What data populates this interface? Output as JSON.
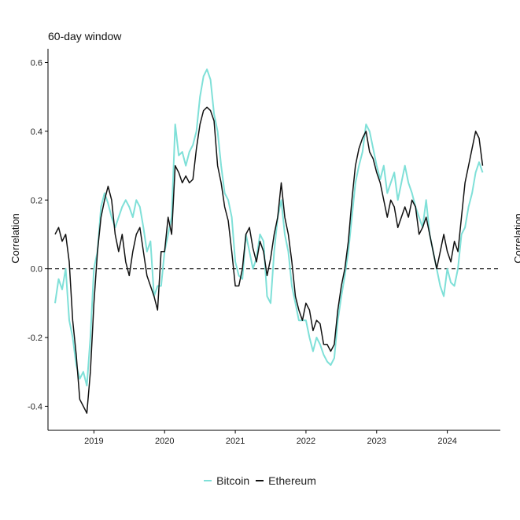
{
  "chart_data": {
    "type": "line",
    "title": "60-day window",
    "ylabel": "Correlation",
    "xlabel": "",
    "ylim": [
      -0.47,
      0.64
    ],
    "xlim": [
      2018.35,
      2024.75
    ],
    "y_ticks": [
      -0.4,
      -0.2,
      0.0,
      0.2,
      0.4,
      0.6
    ],
    "y_tick_labels": [
      "-0.4",
      "-0.2",
      "0.0",
      "0.2",
      "0.4",
      "0.6"
    ],
    "x_ticks": [
      2019,
      2020,
      2021,
      2022,
      2023,
      2024
    ],
    "x_tick_labels": [
      "2019",
      "2020",
      "2021",
      "2022",
      "2023",
      "2024"
    ],
    "reference_line": {
      "y": 0.0,
      "style": "dashed"
    },
    "grid": false,
    "legend_position": "bottom",
    "clipped_right_label": "Correlation",
    "series": [
      {
        "name": "Bitcoin",
        "color": "#7fe0d8",
        "x": [
          2018.45,
          2018.5,
          2018.55,
          2018.6,
          2018.65,
          2018.7,
          2018.75,
          2018.8,
          2018.85,
          2018.9,
          2018.95,
          2019.0,
          2019.05,
          2019.1,
          2019.15,
          2019.2,
          2019.25,
          2019.3,
          2019.35,
          2019.4,
          2019.45,
          2019.5,
          2019.55,
          2019.6,
          2019.65,
          2019.7,
          2019.75,
          2019.8,
          2019.85,
          2019.9,
          2019.95,
          2020.0,
          2020.05,
          2020.1,
          2020.15,
          2020.2,
          2020.25,
          2020.3,
          2020.35,
          2020.4,
          2020.45,
          2020.5,
          2020.55,
          2020.6,
          2020.65,
          2020.7,
          2020.75,
          2020.8,
          2020.85,
          2020.9,
          2020.95,
          2021.0,
          2021.05,
          2021.1,
          2021.15,
          2021.2,
          2021.25,
          2021.3,
          2021.35,
          2021.4,
          2021.45,
          2021.5,
          2021.55,
          2021.6,
          2021.65,
          2021.7,
          2021.75,
          2021.8,
          2021.85,
          2021.9,
          2021.95,
          2022.0,
          2022.05,
          2022.1,
          2022.15,
          2022.2,
          2022.25,
          2022.3,
          2022.35,
          2022.4,
          2022.45,
          2022.5,
          2022.55,
          2022.6,
          2022.65,
          2022.7,
          2022.75,
          2022.8,
          2022.85,
          2022.9,
          2022.95,
          2023.0,
          2023.05,
          2023.1,
          2023.15,
          2023.2,
          2023.25,
          2023.3,
          2023.35,
          2023.4,
          2023.45,
          2023.5,
          2023.55,
          2023.6,
          2023.65,
          2023.7,
          2023.75,
          2023.8,
          2023.85,
          2023.9,
          2023.95,
          2024.0,
          2024.05,
          2024.1,
          2024.15,
          2024.2,
          2024.25,
          2024.3,
          2024.35,
          2024.4,
          2024.45,
          2024.5
        ],
        "y": [
          -0.1,
          -0.03,
          -0.06,
          0.0,
          -0.15,
          -0.2,
          -0.28,
          -0.32,
          -0.3,
          -0.34,
          -0.2,
          0.0,
          0.05,
          0.18,
          0.22,
          0.19,
          0.15,
          0.12,
          0.15,
          0.18,
          0.2,
          0.18,
          0.15,
          0.2,
          0.18,
          0.12,
          0.05,
          0.08,
          -0.08,
          -0.05,
          -0.05,
          0.05,
          0.1,
          0.15,
          0.42,
          0.33,
          0.34,
          0.3,
          0.34,
          0.36,
          0.4,
          0.5,
          0.56,
          0.58,
          0.55,
          0.45,
          0.4,
          0.3,
          0.22,
          0.2,
          0.15,
          0.02,
          -0.02,
          -0.03,
          0.1,
          0.05,
          0.0,
          0.03,
          0.1,
          0.08,
          -0.08,
          -0.1,
          0.05,
          0.15,
          0.2,
          0.1,
          0.05,
          -0.05,
          -0.1,
          -0.15,
          -0.15,
          -0.15,
          -0.2,
          -0.24,
          -0.2,
          -0.22,
          -0.25,
          -0.27,
          -0.28,
          -0.26,
          -0.15,
          -0.08,
          -0.02,
          0.05,
          0.15,
          0.25,
          0.3,
          0.34,
          0.42,
          0.4,
          0.35,
          0.3,
          0.26,
          0.3,
          0.22,
          0.25,
          0.28,
          0.2,
          0.25,
          0.3,
          0.25,
          0.22,
          0.18,
          0.15,
          0.12,
          0.2,
          0.1,
          0.05,
          0.0,
          -0.05,
          -0.08,
          0.0,
          -0.04,
          -0.05,
          0.0,
          0.1,
          0.12,
          0.18,
          0.22,
          0.28,
          0.31,
          0.28
        ]
      },
      {
        "name": "Ethereum",
        "color": "#111111",
        "x": [
          2018.45,
          2018.5,
          2018.55,
          2018.6,
          2018.65,
          2018.7,
          2018.75,
          2018.8,
          2018.85,
          2018.9,
          2018.95,
          2019.0,
          2019.05,
          2019.1,
          2019.15,
          2019.2,
          2019.25,
          2019.3,
          2019.35,
          2019.4,
          2019.45,
          2019.5,
          2019.55,
          2019.6,
          2019.65,
          2019.7,
          2019.75,
          2019.8,
          2019.85,
          2019.9,
          2019.95,
          2020.0,
          2020.05,
          2020.1,
          2020.15,
          2020.2,
          2020.25,
          2020.3,
          2020.35,
          2020.4,
          2020.45,
          2020.5,
          2020.55,
          2020.6,
          2020.65,
          2020.7,
          2020.75,
          2020.8,
          2020.85,
          2020.9,
          2020.95,
          2021.0,
          2021.05,
          2021.1,
          2021.15,
          2021.2,
          2021.25,
          2021.3,
          2021.35,
          2021.4,
          2021.45,
          2021.5,
          2021.55,
          2021.6,
          2021.65,
          2021.7,
          2021.75,
          2021.8,
          2021.85,
          2021.9,
          2021.95,
          2022.0,
          2022.05,
          2022.1,
          2022.15,
          2022.2,
          2022.25,
          2022.3,
          2022.35,
          2022.4,
          2022.45,
          2022.5,
          2022.55,
          2022.6,
          2022.65,
          2022.7,
          2022.75,
          2022.8,
          2022.85,
          2022.9,
          2022.95,
          2023.0,
          2023.05,
          2023.1,
          2023.15,
          2023.2,
          2023.25,
          2023.3,
          2023.35,
          2023.4,
          2023.45,
          2023.5,
          2023.55,
          2023.6,
          2023.65,
          2023.7,
          2023.75,
          2023.8,
          2023.85,
          2023.9,
          2023.95,
          2024.0,
          2024.05,
          2024.1,
          2024.15,
          2024.2,
          2024.25,
          2024.3,
          2024.35,
          2024.4,
          2024.45,
          2024.5
        ],
        "y": [
          0.1,
          0.12,
          0.08,
          0.1,
          0.02,
          -0.15,
          -0.25,
          -0.38,
          -0.4,
          -0.42,
          -0.3,
          -0.1,
          0.05,
          0.15,
          0.2,
          0.24,
          0.2,
          0.1,
          0.05,
          0.1,
          0.02,
          -0.02,
          0.05,
          0.1,
          0.12,
          0.05,
          -0.02,
          -0.05,
          -0.08,
          -0.12,
          0.05,
          0.05,
          0.15,
          0.1,
          0.3,
          0.28,
          0.25,
          0.27,
          0.25,
          0.26,
          0.35,
          0.42,
          0.46,
          0.47,
          0.46,
          0.43,
          0.3,
          0.25,
          0.18,
          0.14,
          0.05,
          -0.05,
          -0.05,
          0.0,
          0.1,
          0.12,
          0.06,
          0.02,
          0.08,
          0.05,
          -0.02,
          0.03,
          0.1,
          0.15,
          0.25,
          0.15,
          0.1,
          0.02,
          -0.08,
          -0.12,
          -0.15,
          -0.1,
          -0.12,
          -0.18,
          -0.15,
          -0.16,
          -0.22,
          -0.22,
          -0.24,
          -0.22,
          -0.12,
          -0.05,
          0.0,
          0.08,
          0.2,
          0.3,
          0.35,
          0.38,
          0.4,
          0.34,
          0.32,
          0.28,
          0.25,
          0.2,
          0.15,
          0.2,
          0.18,
          0.12,
          0.15,
          0.18,
          0.15,
          0.2,
          0.18,
          0.1,
          0.12,
          0.15,
          0.1,
          0.05,
          0.0,
          0.05,
          0.1,
          0.05,
          0.02,
          0.08,
          0.05,
          0.15,
          0.25,
          0.3,
          0.35,
          0.4,
          0.38,
          0.3
        ]
      }
    ]
  }
}
